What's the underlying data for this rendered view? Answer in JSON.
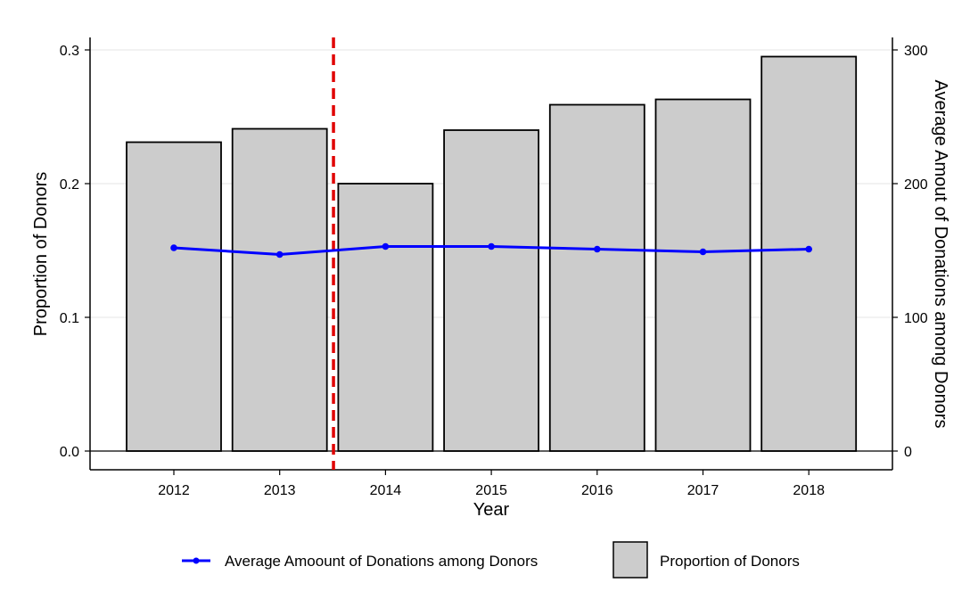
{
  "chart_data": {
    "type": "bar",
    "categories": [
      "2012",
      "2013",
      "2014",
      "2015",
      "2016",
      "2017",
      "2018"
    ],
    "series": [
      {
        "name": "Proportion of Donors",
        "type": "bar",
        "axis": "left",
        "color": "#cccccc",
        "values": [
          0.231,
          0.241,
          0.2,
          0.24,
          0.259,
          0.263,
          0.295
        ]
      },
      {
        "name": "Average Amoount of Donations among Donors",
        "type": "line",
        "axis": "right",
        "color": "#0000ff",
        "values": [
          152,
          147,
          153,
          153,
          151,
          149,
          151
        ]
      }
    ],
    "xlabel": "Year",
    "ylabel": "Proportion of Donors",
    "y2label": "Average Amout of Donations among Donors",
    "ylim": [
      0,
      0.3
    ],
    "y2lim": [
      0,
      300
    ],
    "yticks": [
      "0.0",
      "0.1",
      "0.2",
      "0.3"
    ],
    "y2ticks": [
      "0",
      "100",
      "200",
      "300"
    ],
    "reference_line": {
      "x_between": [
        "2013",
        "2014"
      ],
      "style": "dashed",
      "color": "#e00000"
    },
    "grid": true,
    "legend": {
      "placement": "bottom",
      "entries": [
        "Average Amoount of Donations among Donors",
        "Proportion of Donors"
      ]
    }
  }
}
